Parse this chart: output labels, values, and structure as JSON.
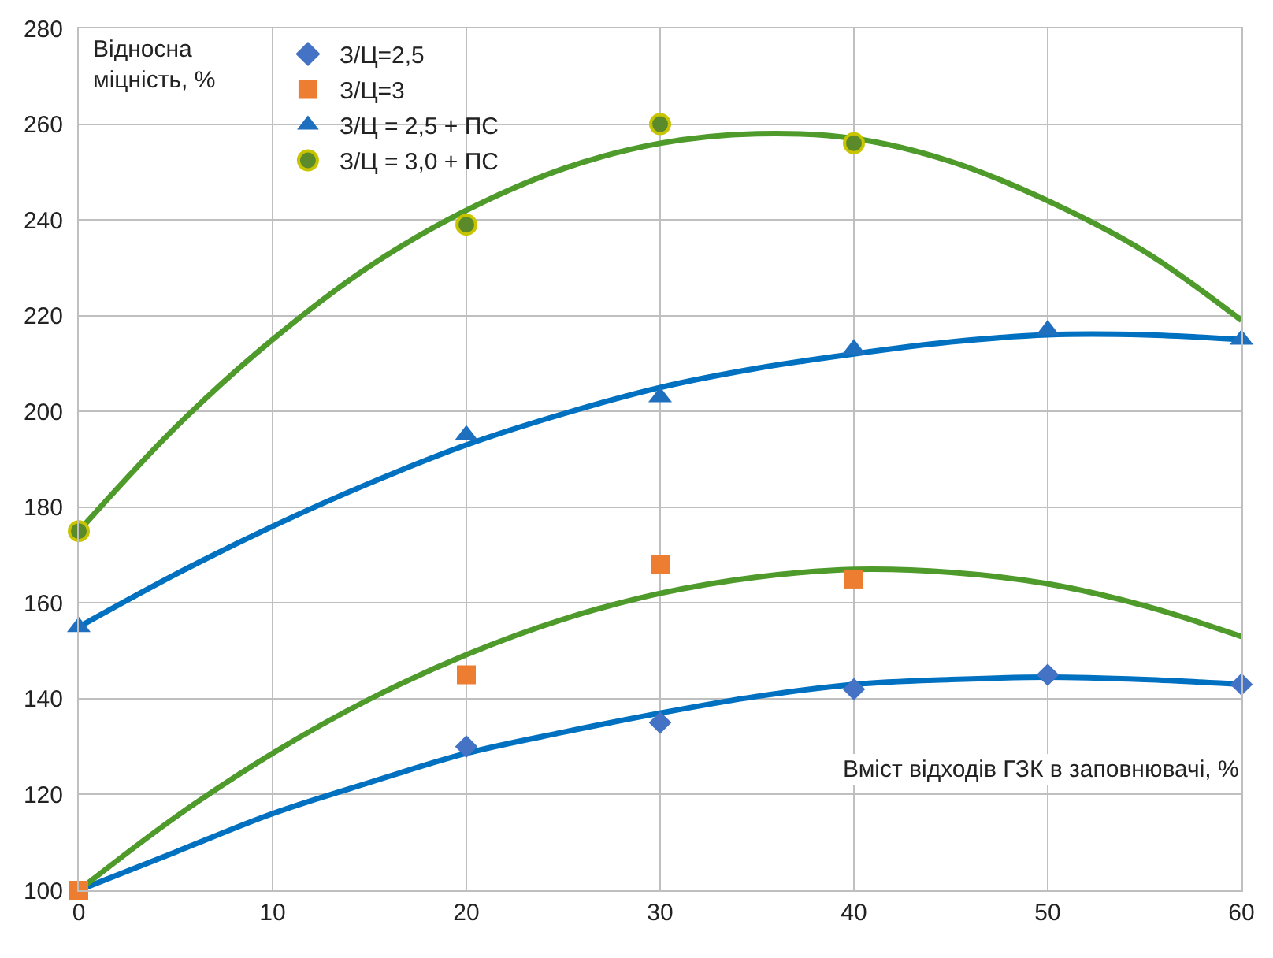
{
  "chart_data": {
    "type": "scatter",
    "xlabel": "Вміст відходів ГЗК в заповнювачі, %",
    "ylabel": "Відносна міцність, %",
    "xlim": [
      0,
      60
    ],
    "xticks": [
      0,
      10,
      20,
      30,
      40,
      50,
      60
    ],
    "ylim": [
      100,
      280
    ],
    "yticks": [
      100,
      120,
      140,
      160,
      180,
      200,
      220,
      240,
      260,
      280
    ],
    "grid": true,
    "legend": "top left",
    "series": [
      {
        "name": "З/Ц=2,5",
        "color": "#4472c4",
        "marker": "diamond",
        "x": [
          20,
          30,
          40,
          50,
          60
        ],
        "values": [
          130,
          135,
          142,
          145,
          143
        ]
      },
      {
        "name": "З/Ц=3",
        "color": "#ed7d31",
        "marker": "square",
        "x": [
          0,
          20,
          30,
          40
        ],
        "values": [
          100,
          145,
          168,
          165
        ]
      },
      {
        "name": "З/Ц = 2,5 + ПС",
        "color": "#1f6fbf",
        "marker": "triangle",
        "x": [
          0,
          20,
          30,
          40,
          50,
          60
        ],
        "values": [
          155,
          195,
          203,
          213,
          217,
          215
        ]
      },
      {
        "name": "З/Ц = 3,0 + ПС",
        "color": "#5a8a2a",
        "marker": "circle",
        "x": [
          0,
          20,
          30,
          40
        ],
        "values": [
          175,
          239,
          260,
          256
        ]
      },
      {
        "type": "line",
        "color": "#0070c0",
        "x": [
          0,
          5,
          10,
          15,
          20,
          25,
          30,
          35,
          40,
          45,
          50,
          55,
          60
        ],
        "values": [
          100,
          108,
          116,
          122.5,
          128.6,
          133,
          137,
          140.5,
          143,
          144,
          144.5,
          144,
          143
        ]
      },
      {
        "type": "line",
        "color": "#4e9a2a",
        "x": [
          0,
          5,
          10,
          15,
          20,
          25,
          30,
          35,
          40,
          45,
          50,
          55,
          60
        ],
        "values": [
          100,
          115.3,
          128.6,
          139.9,
          149.2,
          156.6,
          162,
          165.4,
          167,
          166.4,
          164,
          159.4,
          153
        ]
      },
      {
        "type": "line",
        "color": "#0070c0",
        "x": [
          0,
          5,
          10,
          15,
          20,
          25,
          30,
          35,
          40,
          45,
          50,
          55,
          60
        ],
        "values": [
          155,
          166,
          176,
          185,
          193,
          199.5,
          205,
          209,
          212,
          214.5,
          216,
          216,
          215
        ]
      },
      {
        "type": "line",
        "color": "#4e9a2a",
        "x": [
          0,
          5,
          10,
          15,
          20,
          25,
          30,
          35,
          40,
          45,
          50,
          55,
          60
        ],
        "values": [
          175,
          196.7,
          215,
          230.3,
          242,
          250.7,
          256,
          258,
          257,
          252.2,
          244,
          233.4,
          219
        ]
      }
    ]
  }
}
